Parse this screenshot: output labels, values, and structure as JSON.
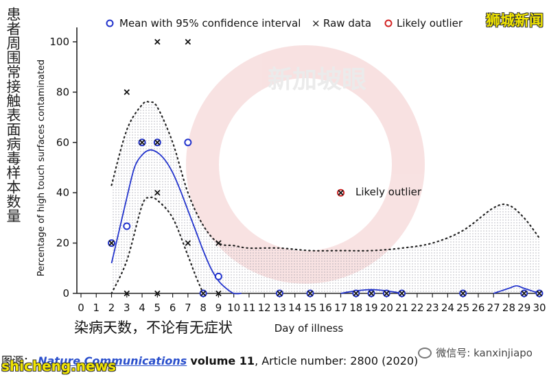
{
  "page": {
    "vertical_cn_label": "患者周围常接触表面病毒样本数量",
    "brand_top_right": "狮城新闻",
    "caption_cn": "染病天数，不论有无症状",
    "source_prefix": "图源：",
    "source_journal": "Nature Communications",
    "source_volume": "volume 11",
    "source_suffix": ", Article number: 2800 (2020)",
    "brand_bottom_left": "shicheng.news",
    "wechat_text": "微信号: kanxinjiapo",
    "watermark_text": "新加坡眼"
  },
  "colors": {
    "mean": "#2233cc",
    "outlier": "#d22222",
    "raw": "#111111",
    "fit": "#2233cc",
    "band": "#333333",
    "watermark": "#e06060"
  },
  "chart_data": {
    "type": "scatter",
    "title": "",
    "xlabel": "Day of illness",
    "ylabel": "Percentage of high touch surfaces contaminated",
    "xlim": [
      0,
      30
    ],
    "ylim": [
      0,
      100
    ],
    "xticks": [
      0,
      1,
      2,
      3,
      4,
      5,
      6,
      7,
      8,
      9,
      10,
      11,
      12,
      13,
      14,
      15,
      16,
      17,
      18,
      19,
      20,
      21,
      22,
      23,
      24,
      25,
      26,
      27,
      28,
      29,
      30
    ],
    "yticks": [
      0,
      20,
      40,
      60,
      80,
      100
    ],
    "grid": false,
    "legend_position": "top",
    "legend": [
      {
        "key": "mean",
        "label": "Mean with 95% confidence interval"
      },
      {
        "key": "raw",
        "label": "Raw data"
      },
      {
        "key": "outlier",
        "label": "Likely outlier"
      }
    ],
    "annotations": [
      {
        "text": "Likely outlier",
        "x": 17,
        "y": 40
      }
    ],
    "series": [
      {
        "name": "Mean with 95% confidence interval",
        "points": [
          [
            2,
            20
          ],
          [
            3,
            26.7
          ],
          [
            4,
            60
          ],
          [
            5,
            60
          ],
          [
            7,
            60
          ],
          [
            8,
            0
          ],
          [
            9,
            6.7
          ],
          [
            13,
            0
          ],
          [
            15,
            0
          ],
          [
            17,
            40
          ],
          [
            18,
            0
          ],
          [
            19,
            0
          ],
          [
            20,
            0
          ],
          [
            21,
            0
          ],
          [
            25,
            0
          ],
          [
            29,
            0
          ],
          [
            30,
            0
          ]
        ]
      },
      {
        "name": "Raw data",
        "points": [
          [
            2,
            20
          ],
          [
            3,
            80
          ],
          [
            3,
            0
          ],
          [
            4,
            60
          ],
          [
            5,
            100
          ],
          [
            5,
            60
          ],
          [
            5,
            40
          ],
          [
            5,
            0
          ],
          [
            7,
            100
          ],
          [
            7,
            20
          ],
          [
            8,
            0
          ],
          [
            9,
            20
          ],
          [
            9,
            0
          ],
          [
            13,
            0
          ],
          [
            15,
            0
          ],
          [
            17,
            40
          ],
          [
            18,
            0
          ],
          [
            19,
            0
          ],
          [
            20,
            0
          ],
          [
            21,
            0
          ],
          [
            25,
            0
          ],
          [
            29,
            0
          ],
          [
            30,
            0
          ]
        ]
      },
      {
        "name": "Likely outlier",
        "points": [
          [
            17,
            40
          ]
        ]
      }
    ],
    "fit_curve": [
      [
        2.0,
        12
      ],
      [
        2.5,
        25
      ],
      [
        3.0,
        38
      ],
      [
        3.5,
        50
      ],
      [
        4.0,
        55
      ],
      [
        4.5,
        57
      ],
      [
        5.0,
        56
      ],
      [
        5.5,
        53
      ],
      [
        6.0,
        48
      ],
      [
        6.5,
        41
      ],
      [
        7.0,
        33
      ],
      [
        7.5,
        25
      ],
      [
        8.0,
        17
      ],
      [
        8.5,
        10
      ],
      [
        9.0,
        5
      ],
      [
        9.5,
        2
      ],
      [
        10.0,
        0
      ],
      [
        10.5,
        -2
      ]
    ],
    "fit_curve_late": [
      [
        17.0,
        0
      ],
      [
        18.0,
        1
      ],
      [
        19.0,
        1.5
      ],
      [
        20.0,
        1
      ],
      [
        21.0,
        0
      ]
    ],
    "fit_curve_late2": [
      [
        27.0,
        0
      ],
      [
        28.0,
        2
      ],
      [
        28.5,
        3
      ],
      [
        29.0,
        2
      ],
      [
        30.0,
        0
      ]
    ],
    "ci_upper": [
      [
        2.0,
        43
      ],
      [
        3.0,
        65
      ],
      [
        4.0,
        75
      ],
      [
        4.5,
        76
      ],
      [
        5.0,
        74
      ],
      [
        6.0,
        60
      ],
      [
        7.0,
        40
      ],
      [
        8.0,
        27
      ],
      [
        9.0,
        20
      ],
      [
        10.0,
        19
      ],
      [
        11.0,
        18
      ],
      [
        13.0,
        18
      ],
      [
        15.0,
        17
      ],
      [
        17.0,
        17
      ],
      [
        19.0,
        17
      ],
      [
        21.0,
        18
      ],
      [
        23.0,
        20
      ],
      [
        25.0,
        25
      ],
      [
        27.0,
        34
      ],
      [
        28.0,
        35
      ],
      [
        29.0,
        30
      ],
      [
        30.0,
        22
      ]
    ],
    "ci_lower": [
      [
        2.0,
        -5
      ],
      [
        3.0,
        13
      ],
      [
        4.0,
        35
      ],
      [
        4.5,
        38
      ],
      [
        5.0,
        37
      ],
      [
        6.0,
        30
      ],
      [
        7.0,
        15
      ],
      [
        7.5,
        7
      ],
      [
        8.0,
        0
      ]
    ]
  }
}
